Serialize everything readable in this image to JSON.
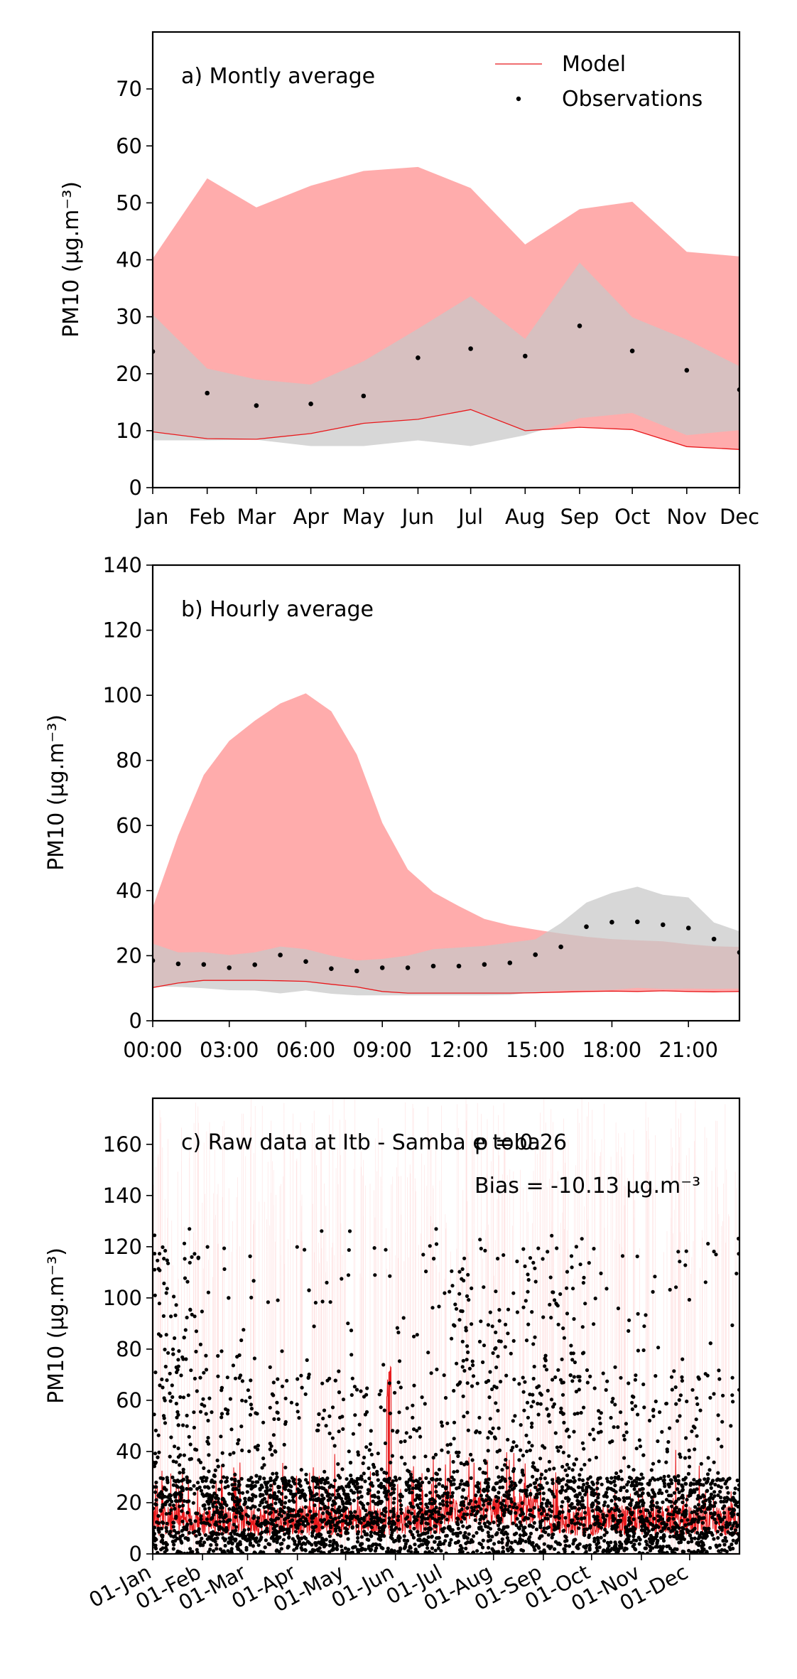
{
  "chart_data": [
    {
      "type": "line",
      "panel_label": "a) Montly average",
      "ylabel": "PM10 (μg.m⁻³)",
      "ylim": [
        0,
        80
      ],
      "yticks": [
        0,
        10,
        20,
        30,
        40,
        50,
        60,
        70
      ],
      "categories": [
        "Jan",
        "Feb",
        "Mar",
        "Apr",
        "May",
        "Jun",
        "Jul",
        "Aug",
        "Sep",
        "Oct",
        "Nov",
        "Dec"
      ],
      "legend": {
        "placement": "top-right",
        "model_label": "Model",
        "obs_label": "Observations"
      },
      "series": [
        {
          "name": "Model",
          "role": "line",
          "color": "#e8191c",
          "values": [
            9.8,
            8.6,
            8.5,
            9.5,
            11.3,
            12.0,
            13.7,
            10.0,
            10.6,
            10.2,
            7.2,
            6.7
          ]
        },
        {
          "name": "Observations",
          "role": "points",
          "color": "#000000",
          "values": [
            23.9,
            16.6,
            14.4,
            14.7,
            16.1,
            22.8,
            24.4,
            23.1,
            28.4,
            24.0,
            20.6,
            17.2
          ]
        }
      ],
      "bands": [
        {
          "of": "Model",
          "color": "#ff8c8c",
          "lower": [
            9.8,
            8.6,
            8.5,
            9.5,
            11.3,
            12.0,
            13.7,
            10.0,
            10.6,
            10.2,
            7.2,
            6.7
          ],
          "upper": [
            40.2,
            54.3,
            49.2,
            53.0,
            55.6,
            56.3,
            52.6,
            42.7,
            48.9,
            50.2,
            41.4,
            40.6
          ]
        },
        {
          "of": "Observations",
          "color": "#c8c8c8",
          "lower": [
            8.3,
            8.3,
            8.4,
            7.3,
            7.3,
            8.3,
            7.3,
            9.2,
            12.2,
            13.1,
            9.2,
            10.1
          ],
          "upper": [
            30.4,
            20.9,
            19.0,
            18.1,
            22.2,
            27.9,
            33.6,
            26.1,
            39.5,
            29.9,
            26.0,
            21.3
          ]
        }
      ]
    },
    {
      "type": "line",
      "panel_label": "b) Hourly average",
      "ylabel": "PM10 (μg.m⁻³)",
      "ylim": [
        0,
        140
      ],
      "yticks": [
        0,
        20,
        40,
        60,
        80,
        100,
        120,
        140
      ],
      "x": [
        0,
        1,
        2,
        3,
        4,
        5,
        6,
        7,
        8,
        9,
        10,
        11,
        12,
        13,
        14,
        15,
        16,
        17,
        18,
        19,
        20,
        21,
        22,
        23
      ],
      "xlim": [
        0,
        23
      ],
      "xticks": [
        0,
        3,
        6,
        9,
        12,
        15,
        18,
        21
      ],
      "xtick_labels": [
        "00:00",
        "03:00",
        "06:00",
        "09:00",
        "12:00",
        "15:00",
        "18:00",
        "21:00"
      ],
      "series": [
        {
          "name": "Model",
          "role": "line",
          "color": "#e8191c",
          "values": [
            10.2,
            11.6,
            12.4,
            12.4,
            12.4,
            12.3,
            12.1,
            11.2,
            10.4,
            9.0,
            8.5,
            8.5,
            8.5,
            8.5,
            8.5,
            8.6,
            8.8,
            9.0,
            9.1,
            9.0,
            9.2,
            9.0,
            8.9,
            9.0
          ]
        },
        {
          "name": "Observations",
          "role": "points",
          "color": "#000000",
          "values": [
            18.5,
            17.5,
            17.3,
            16.3,
            17.2,
            20.2,
            18.2,
            16.0,
            15.3,
            16.3,
            16.3,
            16.8,
            16.8,
            17.3,
            17.8,
            20.3,
            22.7,
            28.9,
            30.3,
            30.4,
            29.5,
            28.5,
            25.1,
            21.0
          ]
        }
      ],
      "bands": [
        {
          "of": "Model",
          "color": "#ff8c8c",
          "lower": [
            10.2,
            11.6,
            12.4,
            12.4,
            12.4,
            12.3,
            12.1,
            11.2,
            10.4,
            9.0,
            8.5,
            8.5,
            8.5,
            8.5,
            8.5,
            8.6,
            8.8,
            9.0,
            9.1,
            9.0,
            9.2,
            9.0,
            8.9,
            9.0
          ],
          "upper": [
            34.8,
            57.0,
            75.5,
            86.0,
            92.2,
            97.5,
            100.6,
            95.1,
            81.8,
            60.8,
            46.5,
            39.5,
            35.2,
            31.3,
            29.3,
            28.0,
            26.8,
            25.8,
            25.1,
            24.7,
            24.4,
            23.5,
            22.9,
            22.7
          ]
        },
        {
          "of": "Observations",
          "color": "#c8c8c8",
          "lower": [
            10.5,
            10.4,
            10.0,
            9.4,
            9.3,
            8.4,
            9.3,
            8.3,
            7.8,
            7.8,
            7.8,
            7.8,
            7.8,
            7.8,
            7.9,
            8.8,
            9.3,
            9.4,
            9.5,
            10.1,
            9.8,
            9.9,
            9.8,
            9.9
          ],
          "upper": [
            23.7,
            21.0,
            21.1,
            20.2,
            21.0,
            22.8,
            22.0,
            20.0,
            18.5,
            19.0,
            20.0,
            22.0,
            22.5,
            23.0,
            24.0,
            25.0,
            30.0,
            36.3,
            39.3,
            41.2,
            38.7,
            37.9,
            30.2,
            27.5
          ]
        }
      ]
    },
    {
      "type": "line",
      "panel_label": "c) Raw data at Itb - Samba e toba",
      "stat_label": "p = 0.26",
      "bias_label": "Bias = -10.13 μg.m⁻³",
      "ylabel": "PM10 (μg.m⁻³)",
      "ylim": [
        0,
        178
      ],
      "yticks": [
        0,
        20,
        40,
        60,
        80,
        100,
        120,
        140,
        160
      ],
      "xtick_labels": [
        "01-Jan",
        "01-Feb",
        "01-Mar",
        "01-Apr",
        "01-May",
        "01-Jun",
        "01-Jul",
        "01-Aug",
        "01-Sep",
        "01-Oct",
        "01-Nov",
        "01-Dec"
      ],
      "xtick_days": [
        0,
        31,
        59,
        90,
        120,
        151,
        181,
        212,
        243,
        273,
        304,
        334
      ],
      "xlim_days": [
        0,
        365
      ],
      "series": [
        {
          "name": "Model",
          "role": "line",
          "color": "#e8191c",
          "note": "hourly series"
        },
        {
          "name": "Observations",
          "role": "points",
          "color": "#000000",
          "note": "hourly series"
        }
      ]
    }
  ]
}
